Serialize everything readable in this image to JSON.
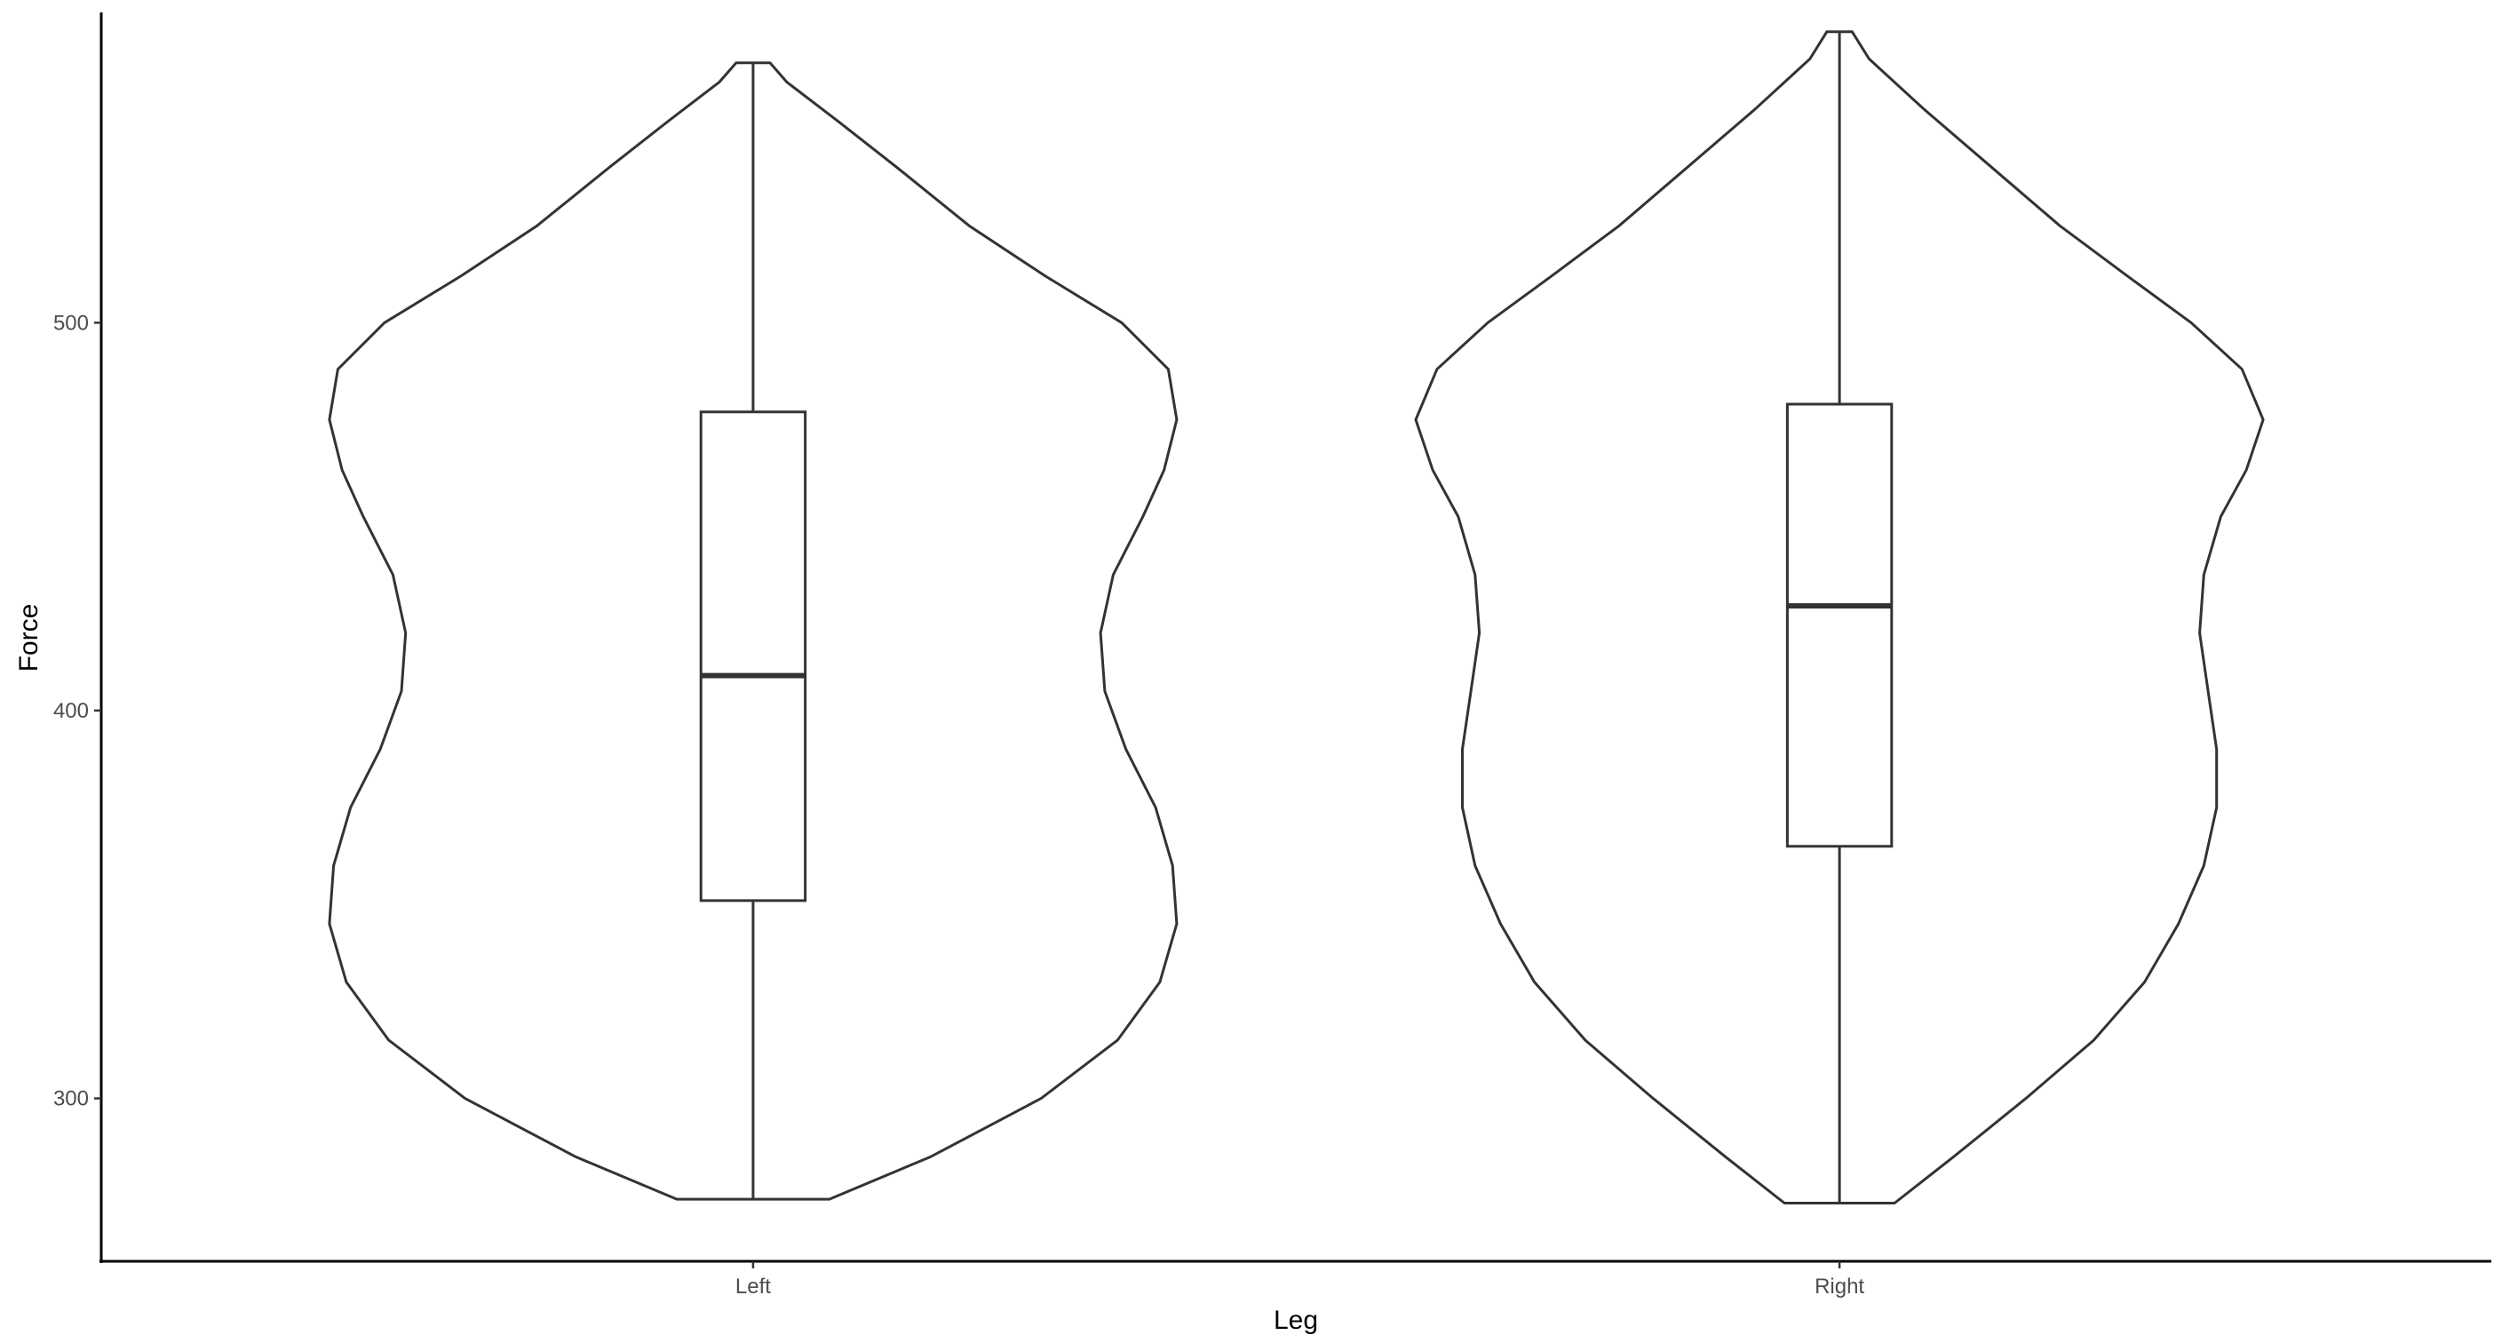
{
  "chart_data": {
    "type": "violin",
    "xlabel": "Leg",
    "ylabel": "Force",
    "categories": [
      "Left",
      "Right"
    ],
    "ylim": [
      258,
      580
    ],
    "yticks": [
      300,
      400,
      500
    ],
    "groups": [
      {
        "name": "Left",
        "min": 274,
        "q1": 351,
        "median": 409,
        "q3": 477,
        "max": 567,
        "density_profile": [
          {
            "y": 274,
            "w": 0.18
          },
          {
            "y": 285,
            "w": 0.42
          },
          {
            "y": 300,
            "w": 0.68
          },
          {
            "y": 315,
            "w": 0.86
          },
          {
            "y": 330,
            "w": 0.96
          },
          {
            "y": 345,
            "w": 1.0
          },
          {
            "y": 360,
            "w": 0.99
          },
          {
            "y": 375,
            "w": 0.95
          },
          {
            "y": 390,
            "w": 0.88
          },
          {
            "y": 405,
            "w": 0.83
          },
          {
            "y": 420,
            "w": 0.82
          },
          {
            "y": 435,
            "w": 0.85
          },
          {
            "y": 450,
            "w": 0.92
          },
          {
            "y": 462,
            "w": 0.97
          },
          {
            "y": 475,
            "w": 1.0
          },
          {
            "y": 488,
            "w": 0.98
          },
          {
            "y": 500,
            "w": 0.87
          },
          {
            "y": 512,
            "w": 0.69
          },
          {
            "y": 525,
            "w": 0.51
          },
          {
            "y": 540,
            "w": 0.34
          },
          {
            "y": 552,
            "w": 0.2
          },
          {
            "y": 562,
            "w": 0.08
          },
          {
            "y": 567,
            "w": 0.04
          }
        ]
      },
      {
        "name": "Right",
        "min": 273,
        "q1": 365,
        "median": 427,
        "q3": 479,
        "max": 575,
        "density_profile": [
          {
            "y": 273,
            "w": 0.13
          },
          {
            "y": 285,
            "w": 0.27
          },
          {
            "y": 300,
            "w": 0.44
          },
          {
            "y": 315,
            "w": 0.6
          },
          {
            "y": 330,
            "w": 0.72
          },
          {
            "y": 345,
            "w": 0.8
          },
          {
            "y": 360,
            "w": 0.86
          },
          {
            "y": 375,
            "w": 0.89
          },
          {
            "y": 390,
            "w": 0.89
          },
          {
            "y": 405,
            "w": 0.87
          },
          {
            "y": 420,
            "w": 0.85
          },
          {
            "y": 435,
            "w": 0.86
          },
          {
            "y": 450,
            "w": 0.9
          },
          {
            "y": 462,
            "w": 0.96
          },
          {
            "y": 475,
            "w": 1.0
          },
          {
            "y": 488,
            "w": 0.95
          },
          {
            "y": 500,
            "w": 0.83
          },
          {
            "y": 512,
            "w": 0.68
          },
          {
            "y": 525,
            "w": 0.52
          },
          {
            "y": 540,
            "w": 0.36
          },
          {
            "y": 555,
            "w": 0.2
          },
          {
            "y": 568,
            "w": 0.07
          },
          {
            "y": 575,
            "w": 0.03
          }
        ]
      }
    ]
  }
}
